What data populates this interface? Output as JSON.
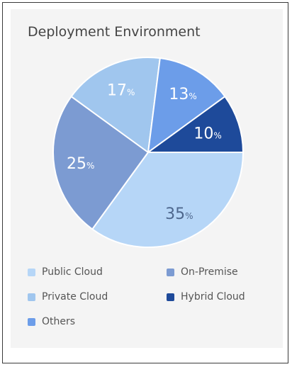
{
  "chart_data": {
    "type": "pie",
    "title": "Deployment Environment",
    "categories": [
      "Public Cloud",
      "On-Premise",
      "Private Cloud",
      "Others",
      "Hybrid Cloud"
    ],
    "values": [
      35,
      25,
      17,
      13,
      10
    ],
    "value_suffix": "%",
    "colors": [
      "#b6d6f7",
      "#7c9bd2",
      "#a0c6ee",
      "#6c9de9",
      "#1e4a9a"
    ],
    "label_colors": [
      "#4e678d",
      "#ffffff",
      "#ffffff",
      "#ffffff",
      "#ffffff"
    ],
    "legend_position": "bottom",
    "legend_order": [
      "Public Cloud",
      "On-Premise",
      "Private Cloud",
      "Hybrid Cloud",
      "Others"
    ]
  }
}
